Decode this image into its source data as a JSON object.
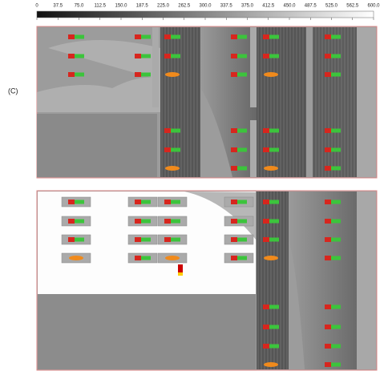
{
  "colorbar": {
    "ticks": [
      "0",
      "37.5",
      "75.0",
      "112.5",
      "150.0",
      "187.5",
      "225.0",
      "262.5",
      "300.0",
      "337.5",
      "375.0",
      "412.5",
      "450.0",
      "487.5",
      "525.0",
      "562.5",
      "600.0"
    ]
  },
  "panel_label": "(C)"
}
